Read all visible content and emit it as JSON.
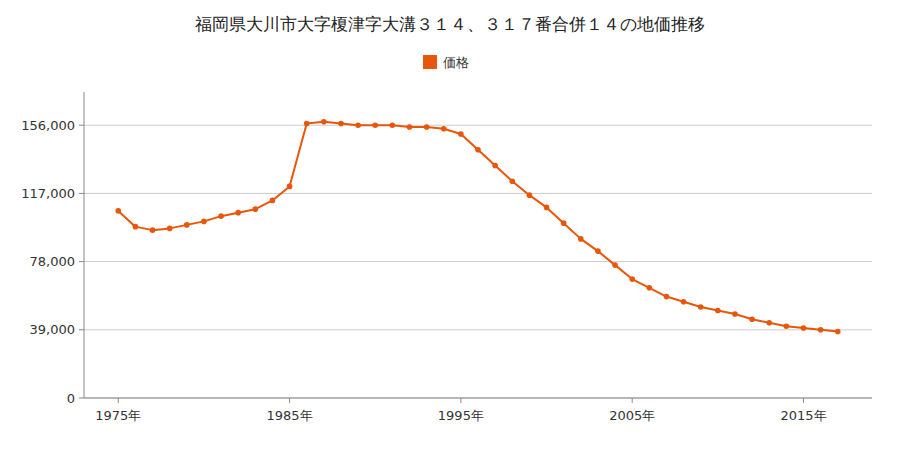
{
  "chart_data": {
    "type": "line",
    "title": "福岡県大川市大字榎津字大溝３１４、３１７番合併１４の地価推移",
    "x": [
      1975,
      1976,
      1977,
      1978,
      1979,
      1980,
      1981,
      1982,
      1983,
      1984,
      1985,
      1986,
      1987,
      1988,
      1989,
      1990,
      1991,
      1992,
      1993,
      1994,
      1995,
      1996,
      1997,
      1998,
      1999,
      2000,
      2001,
      2002,
      2003,
      2004,
      2005,
      2006,
      2007,
      2008,
      2009,
      2010,
      2011,
      2012,
      2013,
      2014,
      2015,
      2016,
      2017
    ],
    "series": [
      {
        "name": "価格",
        "color": "#E8560A",
        "marker": "circle",
        "values": [
          107000,
          98000,
          96000,
          97000,
          99000,
          101000,
          104000,
          106000,
          108000,
          113000,
          121000,
          157000,
          158000,
          157000,
          156000,
          156000,
          156000,
          155000,
          155000,
          154000,
          151000,
          142000,
          133000,
          124000,
          116000,
          109000,
          100000,
          91000,
          84000,
          76000,
          68000,
          63000,
          58000,
          55000,
          52000,
          50000,
          48000,
          45000,
          43000,
          41000,
          40000,
          39000,
          38000
        ]
      }
    ],
    "xlim": [
      1973,
      2019
    ],
    "xticks": [
      {
        "value": 1975,
        "label": "1975年"
      },
      {
        "value": 1985,
        "label": "1985年"
      },
      {
        "value": 1995,
        "label": "1995年"
      },
      {
        "value": 2005,
        "label": "2005年"
      },
      {
        "value": 2015,
        "label": "2015年"
      }
    ],
    "ylim": [
      0,
      175000
    ],
    "yticks": [
      0,
      {
        "value": 39000,
        "label": "39,000"
      },
      {
        "value": 78000,
        "label": "78,000"
      },
      {
        "value": 117000,
        "label": "117,000"
      },
      {
        "value": 156000,
        "label": "156,000"
      }
    ],
    "grid": true,
    "legend": "top"
  }
}
